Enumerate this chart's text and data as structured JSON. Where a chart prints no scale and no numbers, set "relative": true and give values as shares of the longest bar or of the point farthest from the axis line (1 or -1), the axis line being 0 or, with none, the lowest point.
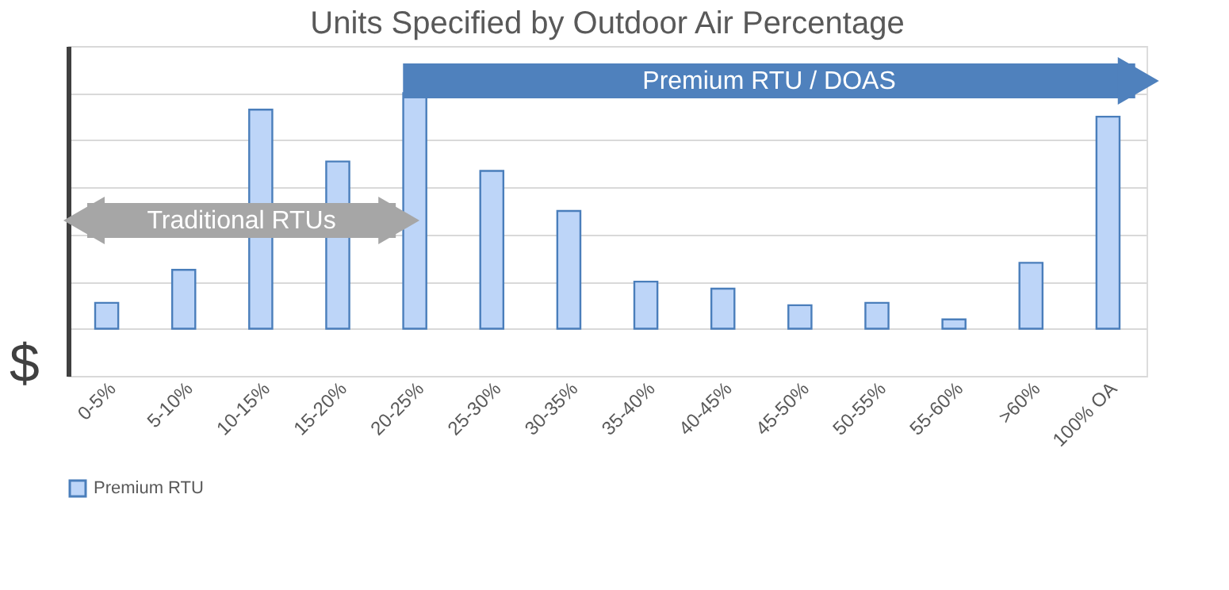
{
  "chart_data": {
    "type": "bar",
    "title": "Units Specified by Outdoor Air Percentage",
    "ylabel": "$",
    "relative": true,
    "categories": [
      "0-5%",
      "5-10%",
      "10-15%",
      "15-20%",
      "20-25%",
      "25-30%",
      "30-35%",
      "35-40%",
      "40-45%",
      "45-50%",
      "50-55%",
      "55-60%",
      ">60%",
      "100% OA"
    ],
    "series": [
      {
        "name": "Premium RTU",
        "color": "#bdd5f8",
        "values": [
          0.11,
          0.25,
          0.93,
          0.71,
          1,
          0.67,
          0.5,
          0.2,
          0.17,
          0.1,
          0.11,
          0.04,
          0.28,
          0.9
        ]
      }
    ],
    "annotations": [
      "Premium RTU / DOAS",
      "Traditional RTUs"
    ],
    "grid": "y",
    "legend": "bottom"
  }
}
